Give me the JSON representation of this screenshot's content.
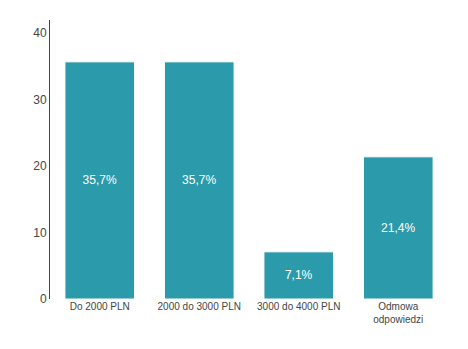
{
  "chart_data": {
    "type": "bar",
    "categories": [
      "Do 2000 PLN",
      "2000 do 3000 PLN",
      "3000 do 4000 PLN",
      "Odmowa\nodpowiedzi"
    ],
    "values": [
      35.7,
      35.7,
      7.1,
      21.4
    ],
    "value_labels": [
      "35,7%",
      "35,7%",
      "7,1%",
      "21,4%"
    ],
    "data_labels": true,
    "color": "#2b9aaa",
    "ylim": [
      0,
      42
    ],
    "yticks": [
      0,
      10,
      20,
      30,
      40
    ],
    "grid": false
  }
}
